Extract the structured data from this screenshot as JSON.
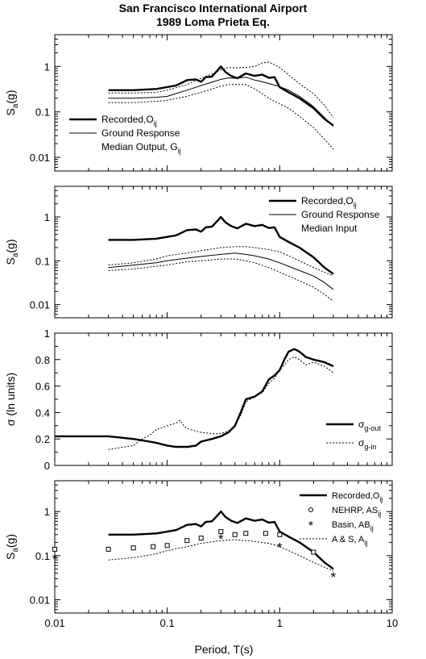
{
  "figure": {
    "title_line1": "San Francisco International Airport",
    "title_line2": "1989 Loma Prieta Eq.",
    "xlabel": "Period, T(s)",
    "x_ticks": [
      "0.01",
      "0.1",
      "1",
      "10"
    ]
  },
  "chart_data": [
    {
      "type": "line",
      "panel": 1,
      "x_scale": "log",
      "y_scale": "log",
      "xlim": [
        0.01,
        10
      ],
      "ylim": [
        0.005,
        5
      ],
      "ylabel": "Sa(g)",
      "y_ticks": [
        "0.01",
        "0.1",
        "1"
      ],
      "legend_position": "left",
      "legend": [
        {
          "label": "Recorded,O",
          "sub": "ij",
          "style": "thick"
        },
        {
          "label": "Ground Response",
          "style": "thin"
        },
        {
          "label": "Median Output, G",
          "sub": "ij",
          "style": "none"
        }
      ],
      "series": [
        {
          "style": "thick",
          "x": [
            0.03,
            0.05,
            0.08,
            0.12,
            0.15,
            0.18,
            0.2,
            0.22,
            0.25,
            0.28,
            0.3,
            0.33,
            0.37,
            0.42,
            0.5,
            0.6,
            0.7,
            0.8,
            0.9,
            1.0,
            1.2,
            1.5,
            2.0,
            2.5,
            3.0
          ],
          "y": [
            0.3,
            0.3,
            0.32,
            0.38,
            0.5,
            0.52,
            0.46,
            0.58,
            0.6,
            0.82,
            1.0,
            0.75,
            0.62,
            0.55,
            0.7,
            0.62,
            0.66,
            0.56,
            0.58,
            0.35,
            0.27,
            0.2,
            0.12,
            0.07,
            0.05
          ]
        },
        {
          "style": "thin",
          "x": [
            0.03,
            0.05,
            0.08,
            0.1,
            0.15,
            0.2,
            0.25,
            0.3,
            0.35,
            0.4,
            0.5,
            0.6,
            0.7,
            0.8,
            1.0,
            1.2,
            1.5,
            2.0,
            2.5,
            3.0
          ],
          "y": [
            0.2,
            0.2,
            0.21,
            0.22,
            0.3,
            0.38,
            0.45,
            0.52,
            0.56,
            0.55,
            0.58,
            0.5,
            0.46,
            0.42,
            0.36,
            0.3,
            0.22,
            0.13,
            0.075,
            0.048
          ]
        },
        {
          "style": "dotted",
          "x": [
            0.03,
            0.05,
            0.08,
            0.1,
            0.15,
            0.2,
            0.25,
            0.3,
            0.35,
            0.4,
            0.5,
            0.6,
            0.7,
            0.8,
            1.0,
            1.2,
            1.5,
            2.0,
            2.5,
            3.0
          ],
          "y": [
            0.26,
            0.26,
            0.27,
            0.3,
            0.4,
            0.55,
            0.68,
            0.85,
            0.95,
            0.93,
            0.95,
            1.0,
            1.2,
            1.25,
            0.95,
            0.65,
            0.42,
            0.25,
            0.14,
            0.075
          ]
        },
        {
          "style": "dotted",
          "x": [
            0.03,
            0.05,
            0.08,
            0.1,
            0.15,
            0.2,
            0.25,
            0.3,
            0.35,
            0.4,
            0.5,
            0.6,
            0.7,
            0.8,
            1.0,
            1.2,
            1.5,
            2.0,
            2.5,
            3.0
          ],
          "y": [
            0.16,
            0.16,
            0.17,
            0.18,
            0.22,
            0.27,
            0.32,
            0.37,
            0.4,
            0.4,
            0.4,
            0.32,
            0.25,
            0.2,
            0.15,
            0.12,
            0.08,
            0.045,
            0.025,
            0.015
          ]
        }
      ]
    },
    {
      "type": "line",
      "panel": 2,
      "x_scale": "log",
      "y_scale": "log",
      "xlim": [
        0.01,
        10
      ],
      "ylim": [
        0.005,
        5
      ],
      "ylabel": "Sa(g)",
      "y_ticks": [
        "0.01",
        "0.1",
        "1"
      ],
      "legend_position": "top-right",
      "legend": [
        {
          "label": "Recorded,O",
          "sub": "ij",
          "style": "thick"
        },
        {
          "label": "Ground Response",
          "style": "thin"
        },
        {
          "label": "Median Input",
          "style": "none"
        }
      ],
      "series": [
        {
          "style": "thick",
          "x": [
            0.03,
            0.05,
            0.08,
            0.12,
            0.15,
            0.18,
            0.2,
            0.22,
            0.25,
            0.28,
            0.3,
            0.33,
            0.37,
            0.42,
            0.5,
            0.6,
            0.7,
            0.8,
            0.9,
            1.0,
            1.2,
            1.5,
            2.0,
            2.5,
            3.0
          ],
          "y": [
            0.3,
            0.3,
            0.32,
            0.38,
            0.5,
            0.52,
            0.46,
            0.58,
            0.6,
            0.82,
            1.0,
            0.75,
            0.62,
            0.55,
            0.7,
            0.62,
            0.66,
            0.56,
            0.58,
            0.35,
            0.27,
            0.2,
            0.12,
            0.07,
            0.05
          ]
        },
        {
          "style": "thin",
          "x": [
            0.03,
            0.05,
            0.08,
            0.1,
            0.15,
            0.2,
            0.3,
            0.4,
            0.5,
            0.6,
            0.8,
            1.0,
            1.2,
            1.5,
            2.0,
            2.5,
            3.0
          ],
          "y": [
            0.07,
            0.08,
            0.09,
            0.1,
            0.115,
            0.125,
            0.14,
            0.15,
            0.14,
            0.13,
            0.11,
            0.09,
            0.075,
            0.06,
            0.045,
            0.032,
            0.022
          ]
        },
        {
          "style": "dotted",
          "x": [
            0.03,
            0.05,
            0.08,
            0.1,
            0.15,
            0.2,
            0.3,
            0.4,
            0.5,
            0.6,
            0.8,
            1.0,
            1.2,
            1.5,
            2.0,
            2.5,
            3.0
          ],
          "y": [
            0.08,
            0.09,
            0.11,
            0.13,
            0.15,
            0.17,
            0.2,
            0.21,
            0.21,
            0.2,
            0.18,
            0.16,
            0.13,
            0.1,
            0.07,
            0.055,
            0.045
          ]
        },
        {
          "style": "dotted",
          "x": [
            0.03,
            0.05,
            0.08,
            0.1,
            0.15,
            0.2,
            0.3,
            0.4,
            0.5,
            0.6,
            0.8,
            1.0,
            1.2,
            1.5,
            2.0,
            2.5,
            3.0
          ],
          "y": [
            0.06,
            0.065,
            0.075,
            0.08,
            0.095,
            0.1,
            0.11,
            0.11,
            0.1,
            0.09,
            0.07,
            0.055,
            0.045,
            0.035,
            0.025,
            0.017,
            0.012
          ]
        }
      ]
    },
    {
      "type": "line",
      "panel": 3,
      "x_scale": "log",
      "y_scale": "linear",
      "xlim": [
        0.01,
        10
      ],
      "ylim": [
        0,
        1
      ],
      "ylabel": "σ (ln units)",
      "y_ticks": [
        "0",
        "0.2",
        "0.4",
        "0.6",
        "0.8",
        "1"
      ],
      "legend_position": "bottom-right",
      "legend": [
        {
          "label": "σ",
          "sub": "g-out",
          "style": "thick"
        },
        {
          "label": "σ",
          "sub": "g-in",
          "style": "dotted"
        }
      ],
      "series": [
        {
          "name": "σg-out",
          "style": "thick",
          "x": [
            0.01,
            0.03,
            0.05,
            0.07,
            0.08,
            0.1,
            0.12,
            0.15,
            0.18,
            0.2,
            0.25,
            0.3,
            0.35,
            0.4,
            0.45,
            0.5,
            0.6,
            0.7,
            0.8,
            0.9,
            1.0,
            1.1,
            1.2,
            1.35,
            1.5,
            1.7,
            2.0,
            2.5,
            3.0
          ],
          "y": [
            0.22,
            0.22,
            0.2,
            0.18,
            0.17,
            0.15,
            0.14,
            0.14,
            0.15,
            0.18,
            0.2,
            0.22,
            0.25,
            0.3,
            0.4,
            0.5,
            0.52,
            0.56,
            0.65,
            0.68,
            0.72,
            0.8,
            0.86,
            0.88,
            0.86,
            0.82,
            0.8,
            0.78,
            0.75
          ]
        },
        {
          "name": "σg-in",
          "style": "dotted",
          "x": [
            0.03,
            0.05,
            0.06,
            0.07,
            0.08,
            0.1,
            0.12,
            0.13,
            0.14,
            0.15,
            0.18,
            0.2,
            0.25,
            0.3,
            0.35,
            0.4,
            0.45,
            0.5,
            0.6,
            0.7,
            0.8,
            0.9,
            1.0,
            1.1,
            1.2,
            1.35,
            1.5,
            1.7,
            2.0,
            2.5,
            3.0
          ],
          "y": [
            0.12,
            0.15,
            0.2,
            0.23,
            0.27,
            0.3,
            0.32,
            0.34,
            0.3,
            0.28,
            0.26,
            0.25,
            0.24,
            0.24,
            0.26,
            0.3,
            0.38,
            0.48,
            0.52,
            0.55,
            0.62,
            0.66,
            0.72,
            0.76,
            0.8,
            0.82,
            0.8,
            0.76,
            0.78,
            0.75,
            0.7
          ]
        }
      ]
    },
    {
      "type": "line",
      "panel": 4,
      "x_scale": "log",
      "y_scale": "log",
      "xlim": [
        0.01,
        10
      ],
      "ylim": [
        0.005,
        5
      ],
      "ylabel": "Sa(g)",
      "y_ticks": [
        "0.01",
        "0.1",
        "1"
      ],
      "legend_position": "top-right",
      "legend": [
        {
          "label": "Recorded,O",
          "sub": "ij",
          "style": "thick"
        },
        {
          "label": "NEHRP, AS",
          "sub": "ij",
          "style": "square"
        },
        {
          "label": "Basin, AB",
          "sub": "ij",
          "style": "asterisk"
        },
        {
          "label": "A & S, A",
          "sub": "ij",
          "style": "dotted"
        }
      ],
      "series": [
        {
          "name": "Recorded,Oij",
          "style": "thick",
          "x": [
            0.03,
            0.05,
            0.08,
            0.12,
            0.15,
            0.18,
            0.2,
            0.22,
            0.25,
            0.28,
            0.3,
            0.33,
            0.37,
            0.42,
            0.5,
            0.6,
            0.7,
            0.8,
            0.9,
            1.0,
            1.2,
            1.5,
            2.0,
            2.5,
            3.0
          ],
          "y": [
            0.3,
            0.3,
            0.32,
            0.38,
            0.5,
            0.52,
            0.46,
            0.58,
            0.6,
            0.82,
            1.0,
            0.75,
            0.62,
            0.55,
            0.7,
            0.62,
            0.66,
            0.56,
            0.58,
            0.35,
            0.27,
            0.2,
            0.12,
            0.07,
            0.05
          ]
        },
        {
          "name": "NEHRP, ASij",
          "style": "square",
          "x": [
            0.01,
            0.03,
            0.05,
            0.075,
            0.1,
            0.15,
            0.2,
            0.3,
            0.4,
            0.5,
            0.75,
            1.0,
            2.0
          ],
          "y": [
            0.14,
            0.14,
            0.15,
            0.16,
            0.17,
            0.22,
            0.25,
            0.35,
            0.3,
            0.32,
            0.32,
            0.3,
            0.12
          ]
        },
        {
          "name": "Basin, ABij",
          "style": "asterisk",
          "x": [
            0.01,
            0.3,
            1.0,
            3.0
          ],
          "y": [
            0.09,
            0.25,
            0.16,
            0.035
          ]
        },
        {
          "name": "A & S, Aij",
          "style": "dotted",
          "x": [
            0.03,
            0.05,
            0.08,
            0.1,
            0.15,
            0.2,
            0.3,
            0.4,
            0.5,
            0.6,
            0.8,
            1.0,
            1.2,
            1.5,
            2.0,
            2.5,
            3.0
          ],
          "y": [
            0.08,
            0.09,
            0.11,
            0.13,
            0.16,
            0.19,
            0.22,
            0.23,
            0.22,
            0.21,
            0.19,
            0.16,
            0.13,
            0.1,
            0.07,
            0.055,
            0.045
          ]
        }
      ]
    }
  ]
}
